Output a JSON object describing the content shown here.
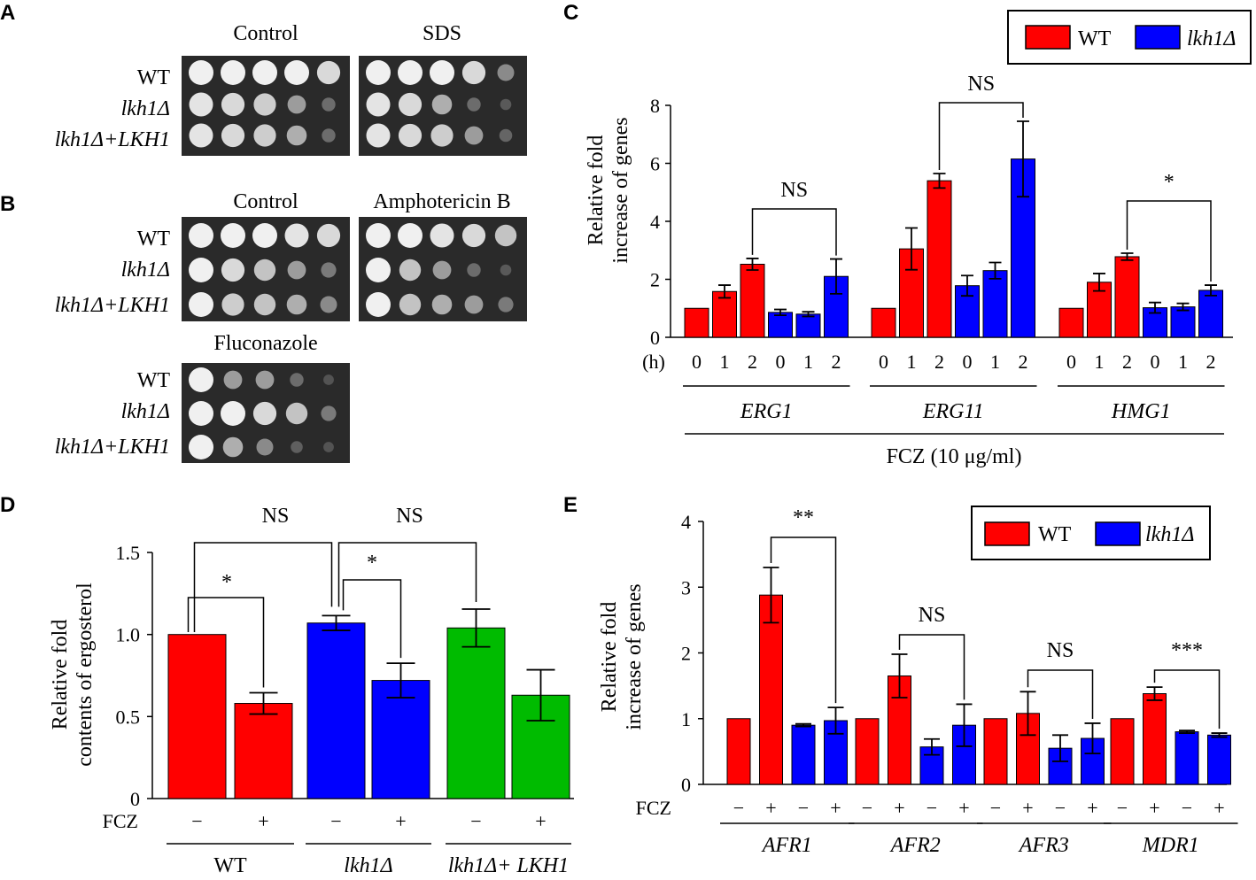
{
  "colors": {
    "wt": "#ff0000",
    "mut": "#0000ff",
    "comp": "#00bb00",
    "plate": "#2a2a2a",
    "colony": "#e8e8e8"
  },
  "panels": {
    "a": {
      "label": "A",
      "plates": [
        "Control",
        "SDS"
      ],
      "strains": [
        "WT",
        "lkh1Δ",
        "lkh1Δ+LKH1"
      ],
      "growth": [
        [
          [
            1,
            1,
            1,
            1,
            0.9
          ],
          [
            1,
            1,
            1,
            0.9,
            0.5
          ]
        ],
        [
          [
            0.95,
            0.9,
            0.85,
            0.6,
            0.3
          ],
          [
            0.95,
            0.9,
            0.7,
            0.3,
            0.15
          ]
        ],
        [
          [
            0.95,
            0.9,
            0.85,
            0.7,
            0.3
          ],
          [
            0.95,
            0.9,
            0.85,
            0.6,
            0.25
          ]
        ]
      ]
    },
    "b": {
      "label": "B",
      "plates": [
        "Control",
        "Amphotericin B"
      ],
      "strains": [
        "WT",
        "lkh1Δ",
        "lkh1Δ+LKH1"
      ],
      "growth": [
        [
          [
            1,
            1,
            1,
            0.95,
            0.9
          ],
          [
            1,
            1,
            0.95,
            0.9,
            0.8
          ]
        ],
        [
          [
            1,
            0.9,
            0.8,
            0.6,
            0.4
          ],
          [
            1,
            0.8,
            0.6,
            0.3,
            0.15
          ]
        ],
        [
          [
            1,
            0.85,
            0.8,
            0.7,
            0.5
          ],
          [
            1,
            0.8,
            0.7,
            0.6,
            0.4
          ]
        ]
      ],
      "fluconazole_title": "Fluconazole",
      "fluconazole_growth": [
        [
          1,
          0.6,
          0.6,
          0.3,
          0.1
        ],
        [
          1,
          1,
          0.9,
          0.8,
          0.4
        ],
        [
          1,
          0.7,
          0.5,
          0.2,
          0.1
        ]
      ]
    },
    "c_label": "C",
    "d_label": "D",
    "e_label": "E"
  },
  "chart_data": [
    {
      "id": "C",
      "type": "bar",
      "title": "",
      "ylabel": [
        "Relative fold",
        "increase of genes"
      ],
      "ylim": [
        0,
        8
      ],
      "yticks": [
        "0",
        "2",
        "4",
        "6",
        "8"
      ],
      "legend": [
        "WT",
        "lkh1Δ"
      ],
      "time_label": "(h)",
      "groups": [
        {
          "gene": "ERG1",
          "times": [
            "0",
            "1",
            "2",
            "0",
            "1",
            "2"
          ],
          "values": [
            1.0,
            1.58,
            2.52,
            0.86,
            0.8,
            2.1
          ],
          "errors": [
            0,
            0.22,
            0.2,
            0.1,
            0.08,
            0.6
          ]
        },
        {
          "gene": "ERG11",
          "times": [
            "0",
            "1",
            "2",
            "0",
            "1",
            "2"
          ],
          "values": [
            1.0,
            3.05,
            5.4,
            1.78,
            2.3,
            6.15
          ],
          "errors": [
            0,
            0.72,
            0.25,
            0.35,
            0.28,
            1.3
          ]
        },
        {
          "gene": "HMG1",
          "times": [
            "0",
            "1",
            "2",
            "0",
            "1",
            "2"
          ],
          "values": [
            1.0,
            1.9,
            2.78,
            1.02,
            1.05,
            1.62
          ],
          "errors": [
            0,
            0.3,
            0.12,
            0.18,
            0.12,
            0.18
          ]
        }
      ],
      "series_colors": [
        "wt",
        "wt",
        "wt",
        "mut",
        "mut",
        "mut"
      ],
      "annotations": [
        "NS",
        "NS",
        "*"
      ],
      "xlabel": "FCZ (10 μg/ml)"
    },
    {
      "id": "D",
      "type": "bar",
      "ylabel": [
        "Relative fold",
        "contents of ergosterol"
      ],
      "ylim": [
        0,
        1.5
      ],
      "yticks": [
        "0",
        "0.5",
        "1.0",
        "1.5"
      ],
      "row_label": "FCZ",
      "fcz": [
        "−",
        "+",
        "−",
        "+",
        "−",
        "+"
      ],
      "values": [
        1.0,
        0.58,
        1.07,
        0.72,
        1.04,
        0.63
      ],
      "errors": [
        0,
        0.065,
        0.045,
        0.105,
        0.115,
        0.155
      ],
      "series_colors": [
        "wt",
        "wt",
        "mut",
        "mut",
        "comp",
        "comp"
      ],
      "groups": [
        "WT",
        "lkh1Δ",
        "lkh1Δ+ LKH1"
      ],
      "annotations": [
        "*",
        "*",
        "NS",
        "NS"
      ]
    },
    {
      "id": "E",
      "type": "bar",
      "ylabel": [
        "Relative fold",
        "increase of genes"
      ],
      "ylim": [
        0,
        4
      ],
      "yticks": [
        "0",
        "1",
        "2",
        "3",
        "4"
      ],
      "legend": [
        "WT",
        "lkh1Δ"
      ],
      "row_label": "FCZ",
      "groups": [
        {
          "gene": "AFR1",
          "fcz": [
            "−",
            "+",
            "−",
            "+"
          ],
          "values": [
            1.0,
            2.88,
            0.9,
            0.97
          ],
          "errors": [
            0,
            0.42,
            0.02,
            0.2
          ]
        },
        {
          "gene": "AFR2",
          "fcz": [
            "−",
            "+",
            "−",
            "+"
          ],
          "values": [
            1.0,
            1.65,
            0.57,
            0.9
          ],
          "errors": [
            0,
            0.33,
            0.12,
            0.32
          ]
        },
        {
          "gene": "AFR3",
          "fcz": [
            "−",
            "+",
            "−",
            "+"
          ],
          "values": [
            1.0,
            1.08,
            0.55,
            0.7
          ],
          "errors": [
            0,
            0.33,
            0.2,
            0.23
          ]
        },
        {
          "gene": "MDR1",
          "fcz": [
            "−",
            "+",
            "−",
            "+"
          ],
          "values": [
            1.0,
            1.38,
            0.8,
            0.75
          ],
          "errors": [
            0,
            0.1,
            0.02,
            0.03
          ]
        }
      ],
      "series_colors": [
        "wt",
        "wt",
        "mut",
        "mut"
      ],
      "annotations": [
        "**",
        "NS",
        "NS",
        "***"
      ]
    }
  ]
}
